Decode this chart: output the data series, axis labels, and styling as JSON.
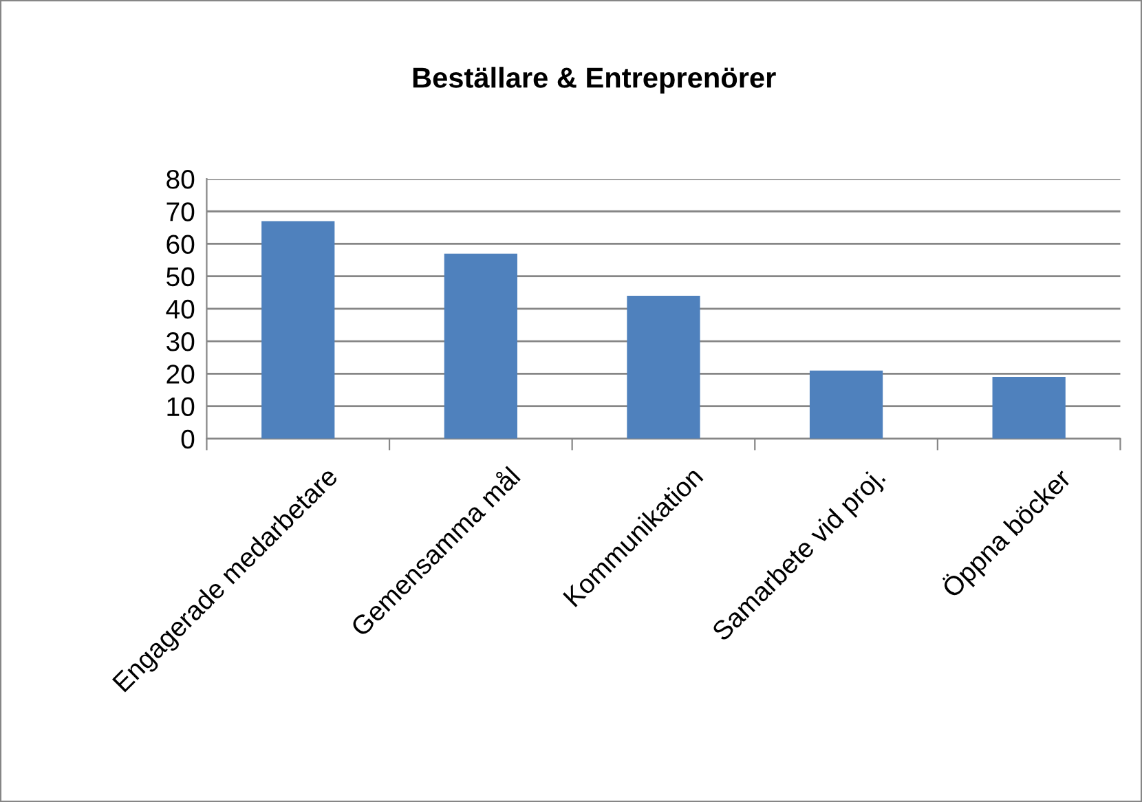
{
  "chart_data": {
    "type": "bar",
    "title": "Beställare & Entreprenörer",
    "categories": [
      "Engagerade medarbetare",
      "Gemensamma mål",
      "Kommunikation",
      "Samarbete vid proj.",
      "Öppna böcker"
    ],
    "values": [
      67,
      57,
      44,
      21,
      19
    ],
    "color": "#4f81bd",
    "ylim": [
      0,
      80
    ],
    "yticks": [
      0,
      10,
      20,
      30,
      40,
      50,
      60,
      70,
      80
    ],
    "grid": "y",
    "legend": false
  }
}
